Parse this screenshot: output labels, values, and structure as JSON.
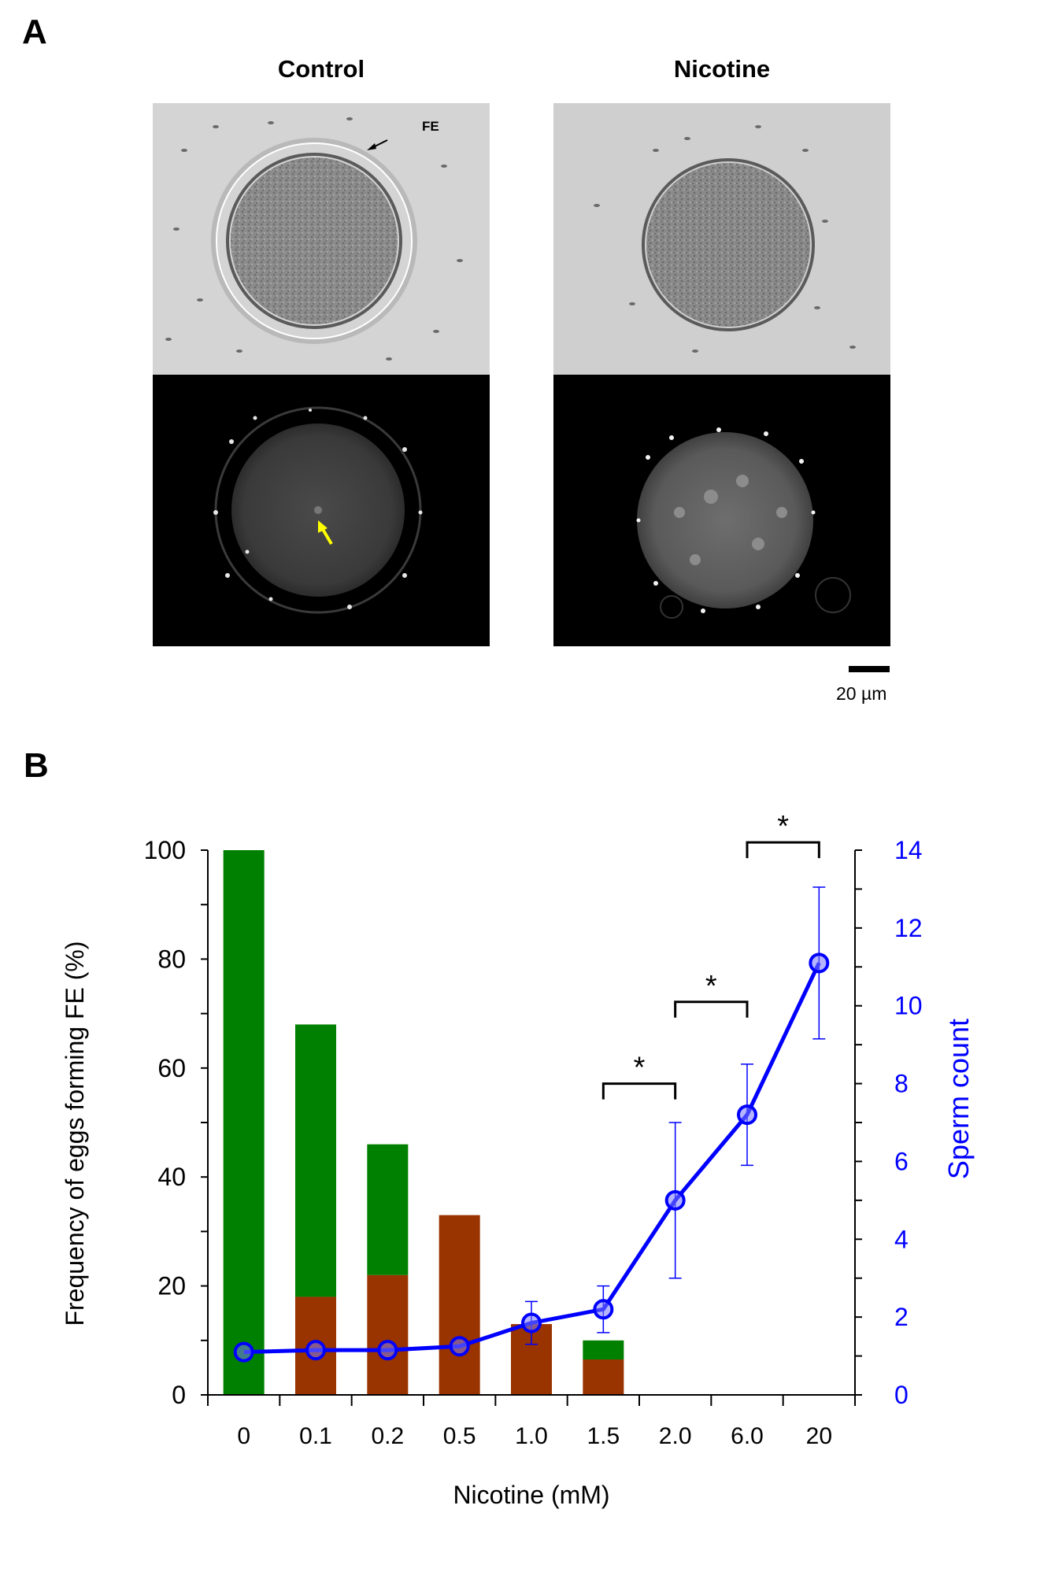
{
  "panel_a": {
    "letter": "A",
    "control_title": "Control",
    "nicotine_title": "Nicotine",
    "fe_label": "FE",
    "scale_label": "20 µm"
  },
  "panel_b": {
    "letter": "B"
  },
  "colors": {
    "green": "#008000",
    "brown": "#993300",
    "blue": "#0000ff"
  },
  "chart_data": {
    "type": "bar",
    "categories": [
      "0",
      "0.1",
      "0.2",
      "0.5",
      "1.0",
      "1.5",
      "2.0",
      "6.0",
      "20"
    ],
    "xlabel": "Nicotine (mM)",
    "ylabel": "Frequency of eggs forming FE (%)",
    "y2label": "Sperm count",
    "ylim": [
      0,
      100
    ],
    "y2lim": [
      0,
      14
    ],
    "yticks": [
      0,
      20,
      40,
      60,
      80,
      100
    ],
    "y2ticks": [
      0,
      2,
      4,
      6,
      8,
      10,
      12,
      14
    ],
    "series": [
      {
        "type": "bar",
        "stack": "total",
        "color": "#993300",
        "values": [
          0,
          18,
          22,
          33,
          13,
          6.5,
          0,
          0,
          0
        ]
      },
      {
        "type": "bar",
        "stack": "total",
        "color": "#008000",
        "values": [
          100,
          50,
          24,
          0,
          0,
          3.5,
          0,
          0,
          0
        ]
      },
      {
        "type": "line",
        "axis": "right",
        "color": "#0000ff",
        "values": [
          1.1,
          1.15,
          1.15,
          1.25,
          1.85,
          2.2,
          5.0,
          7.2,
          11.1
        ],
        "error": [
          0,
          0,
          0,
          0,
          0.55,
          0.6,
          2.0,
          1.3,
          1.95
        ]
      }
    ],
    "annotations": [
      {
        "text": "*",
        "from": "1.5",
        "to": "2.0",
        "level": 8.0
      },
      {
        "text": "*",
        "from": "2.0",
        "to": "6.0",
        "level": 10.1
      },
      {
        "text": "*",
        "from": "6.0",
        "to": "20",
        "level": 14.2
      }
    ]
  }
}
